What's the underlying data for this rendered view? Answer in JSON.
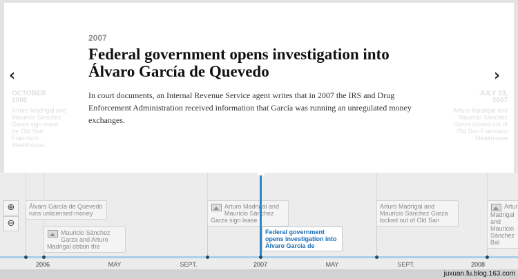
{
  "slide": {
    "year": "2007",
    "headline": "Federal government opens investigation into Álvaro García de Quevedo",
    "body": "In court documents, an Internal Revenue Service agent writes that in 2007 the IRS and Drug Enforcement Administration received information that García was running an unregulated money exchanges."
  },
  "nav": {
    "prev_icon": "‹",
    "next_icon": "›",
    "prev_date_line1": "OCTOBER",
    "prev_date_line2": "2006",
    "prev_text": "Arturo Madrigal and Mauricio Sánchez Garza sign lease for Old San Francisco Steakhouse",
    "next_date_line1": "JULY 13,",
    "next_date_line2": "2007",
    "next_text": "Arturo Madrigal and Mauricio Sánchez Garza locked out of Old San Francisco Steakhouse"
  },
  "zoom": {
    "in_icon": "⊕",
    "out_icon": "⊖"
  },
  "timeline": {
    "markers": [
      {
        "label": "Álvaro García de Quevedo runs unlicensed money",
        "thumb": false
      },
      {
        "label": "Mauricio Sánchez Garza and Arturo Madrigal obtain the",
        "thumb": true
      },
      {
        "label": "Arturo Madrigal and Mauricio Sánchez Garza sign lease",
        "thumb": true
      },
      {
        "label": "Arturo Madrigal and Mauricio Sánchez Garza locked out of Old San",
        "thumb": false
      },
      {
        "label": "Arturo Madrigal and Mauricio Sánchez Bal",
        "thumb": true
      }
    ],
    "active_marker": "Federal government opens investigation into Álvaro García de",
    "axis_labels": [
      "2006",
      "MAY",
      "SEPT.",
      "2007",
      "MAY",
      "SEPT.",
      "2008"
    ]
  },
  "colors": {
    "accent": "#2a86c8",
    "axis": "#a9d0e8"
  },
  "watermark": "juxuan.fu.blog.163.com"
}
